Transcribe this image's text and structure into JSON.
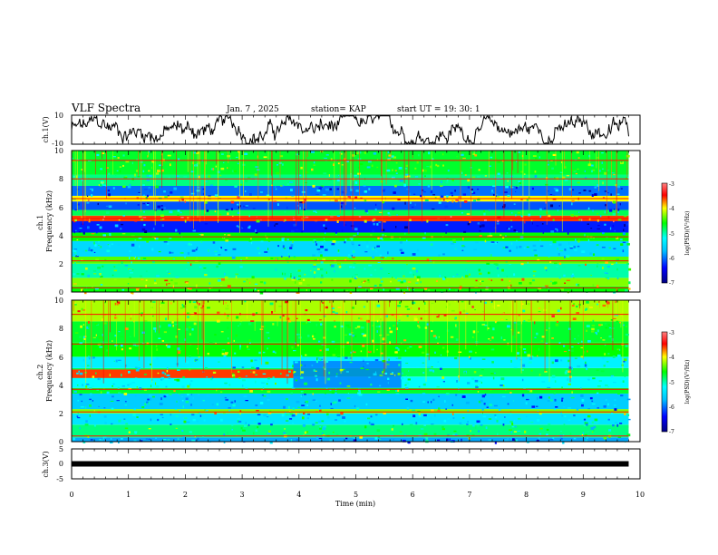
{
  "header": {
    "title": "VLF Spectra",
    "date": "Jan. 7 , 2025",
    "station": "station= KAP",
    "start_time": "start  UT =   19: 30: 1"
  },
  "chart_data": [
    {
      "type": "line",
      "name": "ch1-waveform",
      "ylabel": "ch.1(V)",
      "ylim": [
        -10,
        10
      ],
      "yticks": [
        "10",
        "-10"
      ],
      "xlim": [
        0,
        10
      ],
      "data_end_min": 9.8
    },
    {
      "type": "heatmap",
      "name": "ch1-spectrogram",
      "ylabel": "ch.1\nFrequency  (kHz)",
      "ylim": [
        0,
        10
      ],
      "yticks": [
        "0",
        "2",
        "4",
        "6",
        "8",
        "10"
      ],
      "xlim": [
        0,
        10
      ],
      "data_end_min": 9.8,
      "colorbar": {
        "label": "log(PSD)(V²/Hz)",
        "range": [
          -7,
          -3
        ],
        "ticks": [
          "-3",
          "-4",
          "-5",
          "-6",
          "-7"
        ]
      },
      "bands": [
        {
          "from_khz": 0.0,
          "to_khz": 0.4,
          "level": -4.6
        },
        {
          "from_khz": 0.4,
          "to_khz": 1.0,
          "level": -4.3
        },
        {
          "from_khz": 1.0,
          "to_khz": 2.0,
          "level": -5.0
        },
        {
          "from_khz": 2.0,
          "to_khz": 2.5,
          "level": -4.4
        },
        {
          "from_khz": 2.5,
          "to_khz": 3.6,
          "level": -5.5
        },
        {
          "from_khz": 3.6,
          "to_khz": 4.2,
          "level": -4.6
        },
        {
          "from_khz": 4.2,
          "to_khz": 5.0,
          "level": -6.3
        },
        {
          "from_khz": 5.0,
          "to_khz": 5.4,
          "level": -3.6
        },
        {
          "from_khz": 5.4,
          "to_khz": 5.8,
          "level": -4.8
        },
        {
          "from_khz": 5.8,
          "to_khz": 6.4,
          "level": -6.1
        },
        {
          "from_khz": 6.4,
          "to_khz": 6.8,
          "level": -4.0
        },
        {
          "from_khz": 6.8,
          "to_khz": 7.5,
          "level": -6.0
        },
        {
          "from_khz": 7.5,
          "to_khz": 8.3,
          "level": -4.9
        },
        {
          "from_khz": 8.3,
          "to_khz": 10.0,
          "level": -4.7
        }
      ],
      "lines_khz": [
        0.3,
        2.2,
        3.9,
        5.2,
        6.6,
        8.0,
        9.3
      ]
    },
    {
      "type": "heatmap",
      "name": "ch2-spectrogram",
      "ylabel": "ch.2\nFrequency  (kHz)",
      "ylim": [
        0,
        10
      ],
      "yticks": [
        "0",
        "2",
        "4",
        "6",
        "8",
        "10"
      ],
      "xlim": [
        0,
        10
      ],
      "data_end_min": 9.8,
      "colorbar": {
        "label": "log(PSD)(V²/Hz)",
        "range": [
          -7,
          -3
        ],
        "ticks": [
          "-3",
          "-4",
          "-5",
          "-6",
          "-7"
        ]
      },
      "bands": [
        {
          "from_khz": 0.0,
          "to_khz": 0.3,
          "level": -5.8
        },
        {
          "from_khz": 0.3,
          "to_khz": 1.2,
          "level": -4.9
        },
        {
          "from_khz": 1.2,
          "to_khz": 2.0,
          "level": -5.4
        },
        {
          "from_khz": 2.0,
          "to_khz": 2.3,
          "level": -4.3
        },
        {
          "from_khz": 2.3,
          "to_khz": 3.4,
          "level": -5.6
        },
        {
          "from_khz": 3.4,
          "to_khz": 3.8,
          "level": -4.7
        },
        {
          "from_khz": 3.8,
          "to_khz": 4.6,
          "level": -5.2
        },
        {
          "from_khz": 4.6,
          "to_khz": 5.2,
          "level": -4.8
        },
        {
          "from_khz": 5.2,
          "to_khz": 6.0,
          "level": -5.3
        },
        {
          "from_khz": 6.0,
          "to_khz": 7.0,
          "level": -4.6
        },
        {
          "from_khz": 7.0,
          "to_khz": 8.5,
          "level": -4.7
        },
        {
          "from_khz": 8.5,
          "to_khz": 10.0,
          "level": -4.2
        }
      ],
      "segment": {
        "from_min": 0,
        "to_min": 3.9,
        "from_khz": 4.5,
        "to_khz": 5.1,
        "level": -3.6
      },
      "segment_after": {
        "from_min": 3.9,
        "to_min": 5.8,
        "from_khz": 3.8,
        "to_khz": 5.7,
        "level": -6.0
      },
      "lines_khz": [
        0.4,
        2.1,
        3.7,
        6.9,
        9.0
      ]
    },
    {
      "type": "line",
      "name": "ch3-waveform",
      "ylabel": "ch.3(V)",
      "ylim": [
        -5,
        5
      ],
      "yticks": [
        "5",
        "0",
        "-5"
      ],
      "xlim": [
        0,
        10
      ],
      "xlabel": "Time  (min)",
      "xticks": [
        "0",
        "1",
        "2",
        "3",
        "4",
        "5",
        "6",
        "7",
        "8",
        "9",
        "10"
      ],
      "flat_value": 0,
      "data_end_min": 9.8
    }
  ]
}
